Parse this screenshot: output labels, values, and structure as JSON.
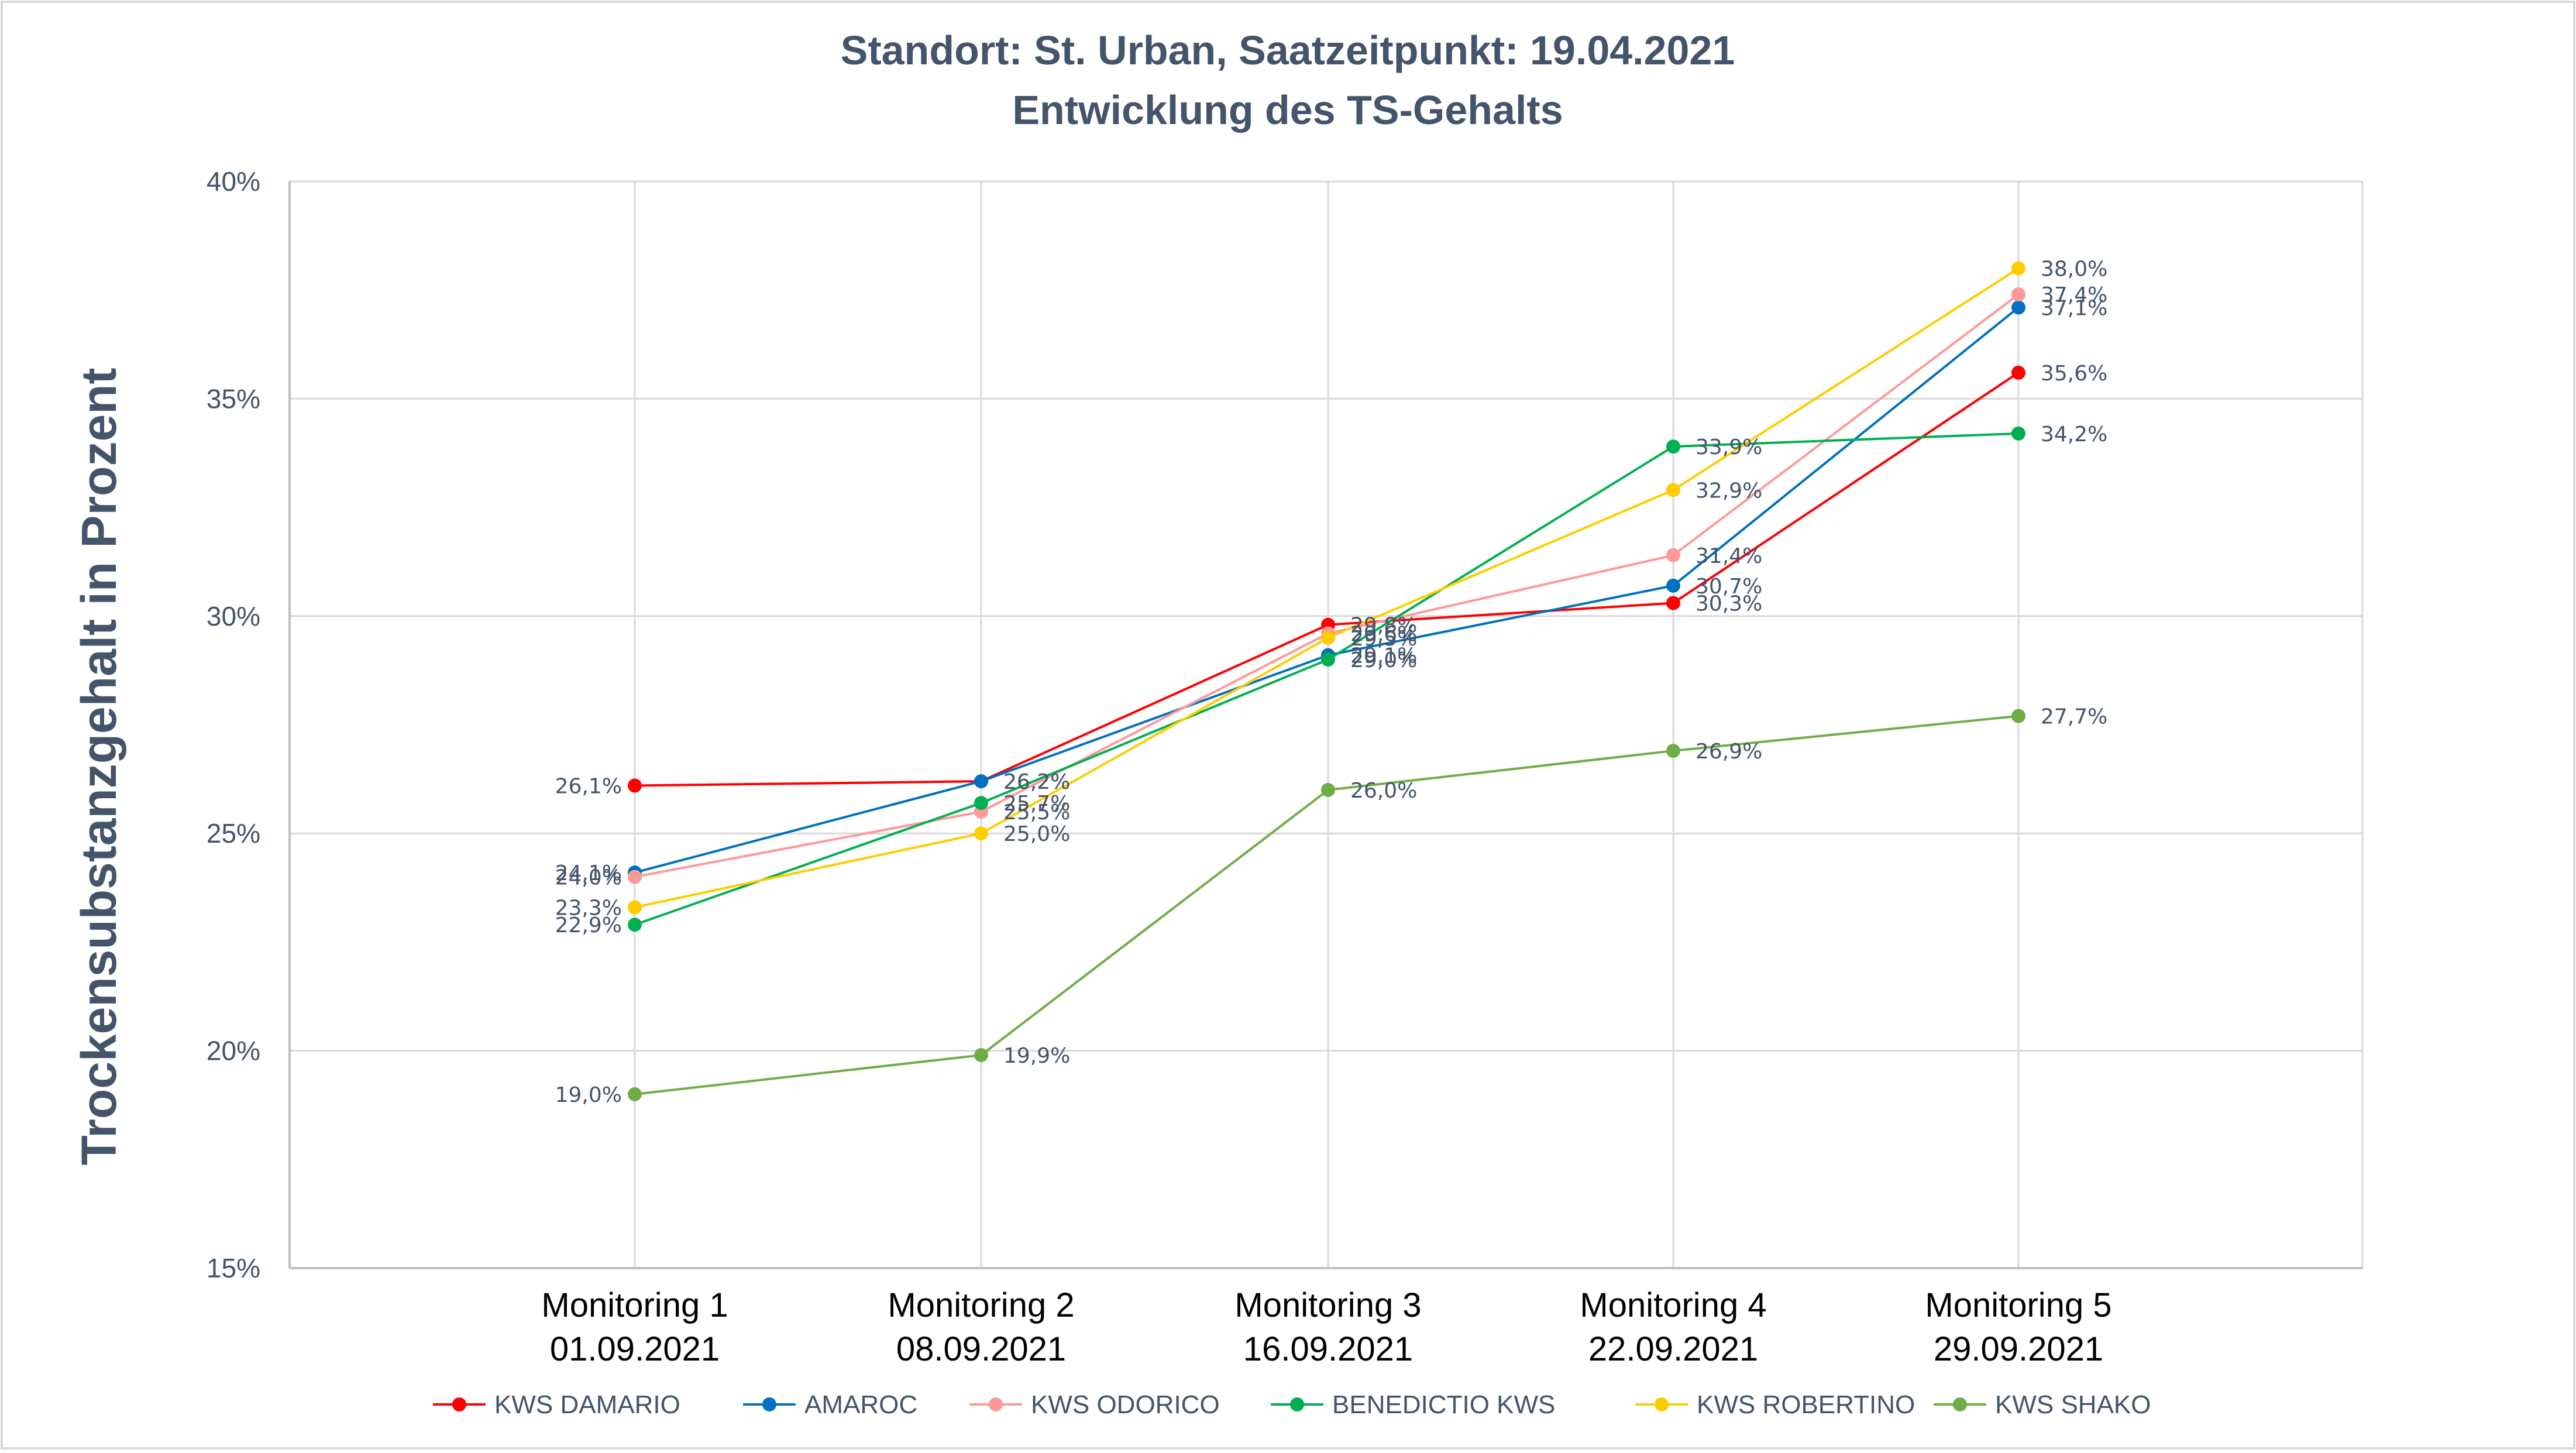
{
  "chart_data": {
    "type": "line",
    "title": "Standort: St. Urban, Saatzeitpunkt: 19.04.2021",
    "subtitle": "Entwicklung des TS-Gehalts",
    "xlabel": "",
    "ylabel": "Trockensubstanzgehalt in Prozent",
    "ylim": [
      15,
      40
    ],
    "yticks": [
      "15%",
      "20%",
      "25%",
      "30%",
      "35%",
      "40%"
    ],
    "ytick_values": [
      15,
      20,
      25,
      30,
      35,
      40
    ],
    "categories": [
      [
        "Monitoring 1",
        "01.09.2021"
      ],
      [
        "Monitoring 2",
        "08.09.2021"
      ],
      [
        "Monitoring 3",
        "16.09.2021"
      ],
      [
        "Monitoring 4",
        "22.09.2021"
      ],
      [
        "Monitoring 5",
        "29.09.2021"
      ]
    ],
    "grid": true,
    "legend_position": "bottom",
    "series": [
      {
        "name": "KWS DAMARIO",
        "color": "#ff0000",
        "values": [
          26.1,
          26.2,
          29.8,
          30.3,
          35.6
        ],
        "labels": [
          "26,1%",
          "26,2%",
          "29,8%",
          "30,3%",
          "35,6%"
        ]
      },
      {
        "name": "AMAROC",
        "color": "#0070c0",
        "values": [
          24.1,
          26.2,
          29.1,
          30.7,
          37.1
        ],
        "labels": [
          "24,1%",
          "26,2%",
          "29,1%",
          "30,7%",
          "37,1%"
        ]
      },
      {
        "name": "KWS ODORICO",
        "color": "#ff9999",
        "values": [
          24.0,
          25.5,
          29.6,
          31.4,
          37.4
        ],
        "labels": [
          "24,0%",
          "25,5%",
          "29,6%",
          "31,4%",
          "37,4%"
        ]
      },
      {
        "name": "BENEDICTIO KWS",
        "color": "#00b050",
        "values": [
          22.9,
          25.7,
          29.0,
          33.9,
          34.2
        ],
        "labels": [
          "22,9%",
          "25,7%",
          "29,0%",
          "33,9%",
          "34,2%"
        ]
      },
      {
        "name": "KWS ROBERTINO",
        "color": "#ffcc00",
        "values": [
          23.3,
          25.0,
          29.5,
          32.9,
          38.0
        ],
        "labels": [
          "23,3%",
          "25,0%",
          "29,5%",
          "32,9%",
          "38,0%"
        ]
      },
      {
        "name": "KWS SHAKO",
        "color": "#70ad47",
        "values": [
          19.0,
          19.9,
          26.0,
          26.9,
          27.7
        ],
        "labels": [
          "19,0%",
          "19,9%",
          "26,0%",
          "26,9%",
          "27,7%"
        ]
      }
    ]
  }
}
